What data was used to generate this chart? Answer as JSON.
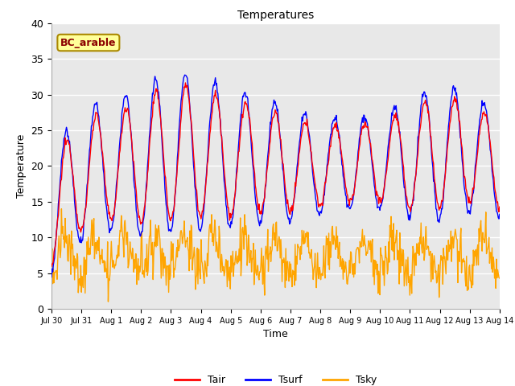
{
  "title": "Temperatures",
  "xlabel": "Time",
  "ylabel": "Temperature",
  "ylim": [
    0,
    40
  ],
  "n_days": 15,
  "pts_per_day": 48,
  "annotation_text": "BC_arable",
  "line_colors": {
    "Tair": "#FF0000",
    "Tsurf": "#0000FF",
    "Tsky": "#FFA500"
  },
  "legend_labels": [
    "Tair",
    "Tsurf",
    "Tsky"
  ],
  "x_tick_labels": [
    "Jul 30",
    "Jul 31",
    "Aug 1",
    "Aug 2",
    "Aug 3",
    "Aug 4",
    "Aug 5",
    "Aug 6",
    "Aug 7",
    "Aug 8",
    "Aug 9",
    "Aug 10",
    "Aug 11",
    "Aug 12",
    "Aug 13",
    "Aug 14"
  ],
  "yticks": [
    0,
    5,
    10,
    15,
    20,
    25,
    30,
    35,
    40
  ],
  "background_color": "#e8e8e8",
  "fig_background": "#ffffff",
  "grid_color": "#ffffff",
  "annotation_bg": "#ffff99",
  "annotation_edge": "#aa8800"
}
